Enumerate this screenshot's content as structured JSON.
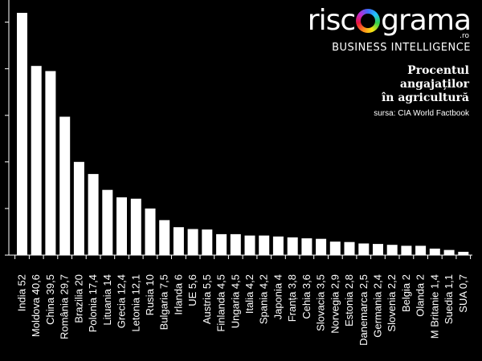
{
  "brand": {
    "logo_start": "risc",
    "logo_end": "grama",
    "tld": ".ro",
    "tagline": "BUSINESS INTELLIGENCE"
  },
  "colors": {
    "background": "#000000",
    "bar": "#ffffff",
    "axis": "#ffffff"
  },
  "chart_data": {
    "type": "bar",
    "title_lines": [
      "Procentul",
      "angajaților",
      "în agricultură"
    ],
    "source": "sursa: CIA World Factbook",
    "xlabel": "",
    "ylabel": "",
    "ylim": [
      0,
      52
    ],
    "yticks": [
      0,
      10,
      20,
      30,
      40,
      50
    ],
    "show_tick_labels": false,
    "grid": false,
    "categories": [
      "India",
      "Moldova",
      "China",
      "România",
      "Brazilia",
      "Polonia",
      "Lituania",
      "Grecia",
      "Letonia",
      "Rusia",
      "Bulgaria",
      "Irlanda",
      "UE",
      "Austria",
      "Finlanda",
      "Ungaria",
      "Italia",
      "Spania",
      "Japonia",
      "Franța",
      "Cehia",
      "Slovacia",
      "Norvegia",
      "Estonia",
      "Danemarca",
      "Germania",
      "Slovenia",
      "Belgia",
      "Olanda",
      "M Britanie",
      "Suedia",
      "SUA"
    ],
    "values": [
      52,
      40.6,
      39.5,
      29.7,
      20,
      17.4,
      14,
      12.4,
      12.1,
      10,
      7.5,
      6,
      5.6,
      5.5,
      4.5,
      4.5,
      4.2,
      4.2,
      4,
      3.8,
      3.6,
      3.5,
      2.9,
      2.8,
      2.5,
      2.4,
      2.2,
      2,
      2,
      1.4,
      1.1,
      0.7
    ],
    "value_labels": [
      "52",
      "40,6",
      "39,5",
      "29,7",
      "20",
      "17,4",
      "14",
      "12,4",
      "12,1",
      "10",
      "7,5",
      "6",
      "5,6",
      "5,5",
      "4,5",
      "4,5",
      "4,2",
      "4,2",
      "4",
      "3,8",
      "3,6",
      "3,5",
      "2,9",
      "2,8",
      "2,5",
      "2,4",
      "2,2",
      "2",
      "2",
      "1,4",
      "1,1",
      "0,7"
    ]
  }
}
